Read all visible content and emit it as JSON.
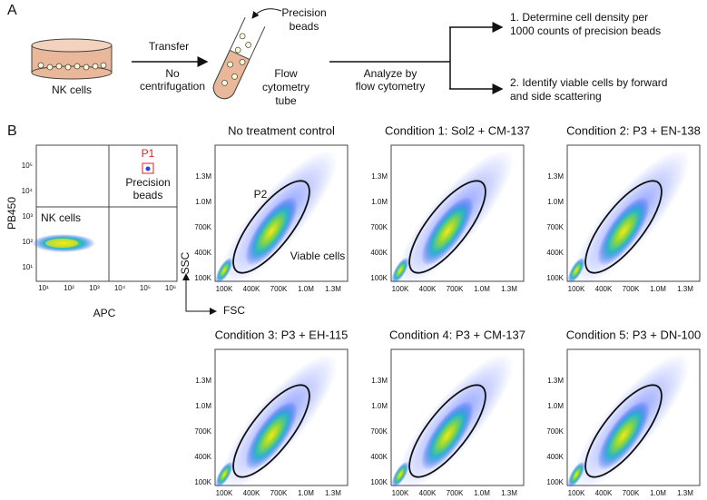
{
  "panel_a": {
    "label": "A",
    "dish_label": "NK cells",
    "transfer": "Transfer",
    "no_centrifugation": [
      "No",
      "centrifugation"
    ],
    "beads": [
      "Precision",
      "beads"
    ],
    "tube": [
      "Flow",
      "cytometry",
      "tube"
    ],
    "analyze": [
      "Analyze by",
      "flow cytometry"
    ],
    "step1": [
      "1. Determine cell density per",
      "1000 counts of precision beads"
    ],
    "step2": [
      "2. Identify viable cells by forward",
      "and side scattering"
    ]
  },
  "panel_b": {
    "label": "B",
    "gate_plot": {
      "gate": "P1",
      "beads": [
        "Precision",
        "beads"
      ],
      "population": "NK cells",
      "y_label": "PB450",
      "x_label": "APC",
      "y_ticks": [
        "10¹",
        "10²",
        "10³",
        "10⁴",
        "10⁵"
      ],
      "x_ticks": [
        "10¹",
        "10²",
        "10³",
        "10⁴",
        "10⁵",
        "10⁶"
      ]
    },
    "scatter_axes": {
      "y_label": "SSC",
      "x_label": "FSC",
      "ticks": [
        "100K",
        "400K",
        "700K",
        "1.0M",
        "1.3M"
      ]
    },
    "gate_labels": {
      "gate": "P2",
      "population": "Viable cells"
    },
    "plots": [
      {
        "title": "No treatment control"
      },
      {
        "title": "Condition 1: Sol2 + CM-137"
      },
      {
        "title": "Condition 2: P3 + EN-138"
      },
      {
        "title": "Condition 3: P3 + EH-115"
      },
      {
        "title": "Condition 4: P3 + CM-137"
      },
      {
        "title": "Condition 5: P3 + DN-100"
      }
    ]
  }
}
